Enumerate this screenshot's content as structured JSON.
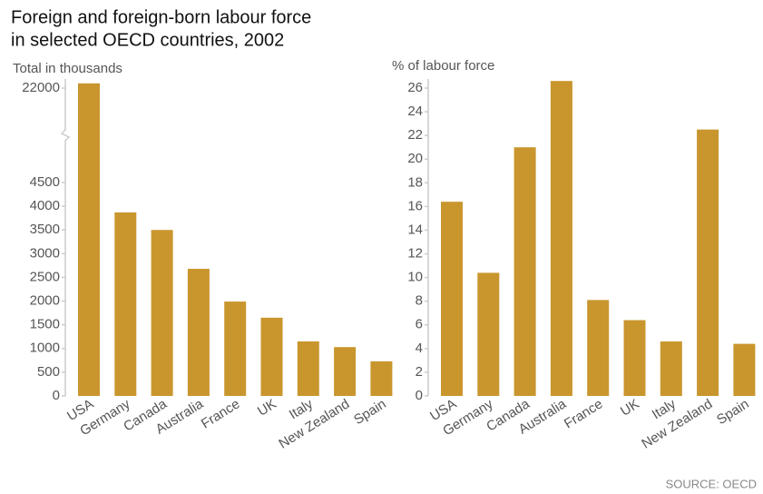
{
  "title_lines": [
    "Foreign and foreign-born labour force",
    "in selected OECD countries, 2002"
  ],
  "source": "SOURCE: OECD",
  "chart_data": [
    {
      "type": "bar",
      "ylabel": "Total in thousands",
      "categories": [
        "USA",
        "Germany",
        "Canada",
        "Australia",
        "France",
        "UK",
        "Italy",
        "New Zealand",
        "Spain"
      ],
      "values": [
        22100,
        3870,
        3500,
        2680,
        1990,
        1650,
        1150,
        1030,
        730
      ],
      "color": "#c9962e",
      "ylim": [
        0,
        22300
      ],
      "yticks": [
        0,
        500,
        1000,
        1500,
        2000,
        2500,
        3000,
        3500,
        4000,
        4500,
        22000
      ]
    },
    {
      "type": "bar",
      "ylabel": "% of labour force",
      "categories": [
        "USA",
        "Germany",
        "Canada",
        "Australia",
        "France",
        "UK",
        "Italy",
        "New Zealand",
        "Spain"
      ],
      "values": [
        16.4,
        10.4,
        21.0,
        26.6,
        8.1,
        6.4,
        4.6,
        22.5,
        4.4
      ],
      "color": "#c9962e",
      "ylim": [
        0,
        27
      ],
      "yticks": [
        0,
        2,
        4,
        6,
        8,
        10,
        12,
        14,
        16,
        18,
        20,
        22,
        24,
        26
      ]
    }
  ]
}
